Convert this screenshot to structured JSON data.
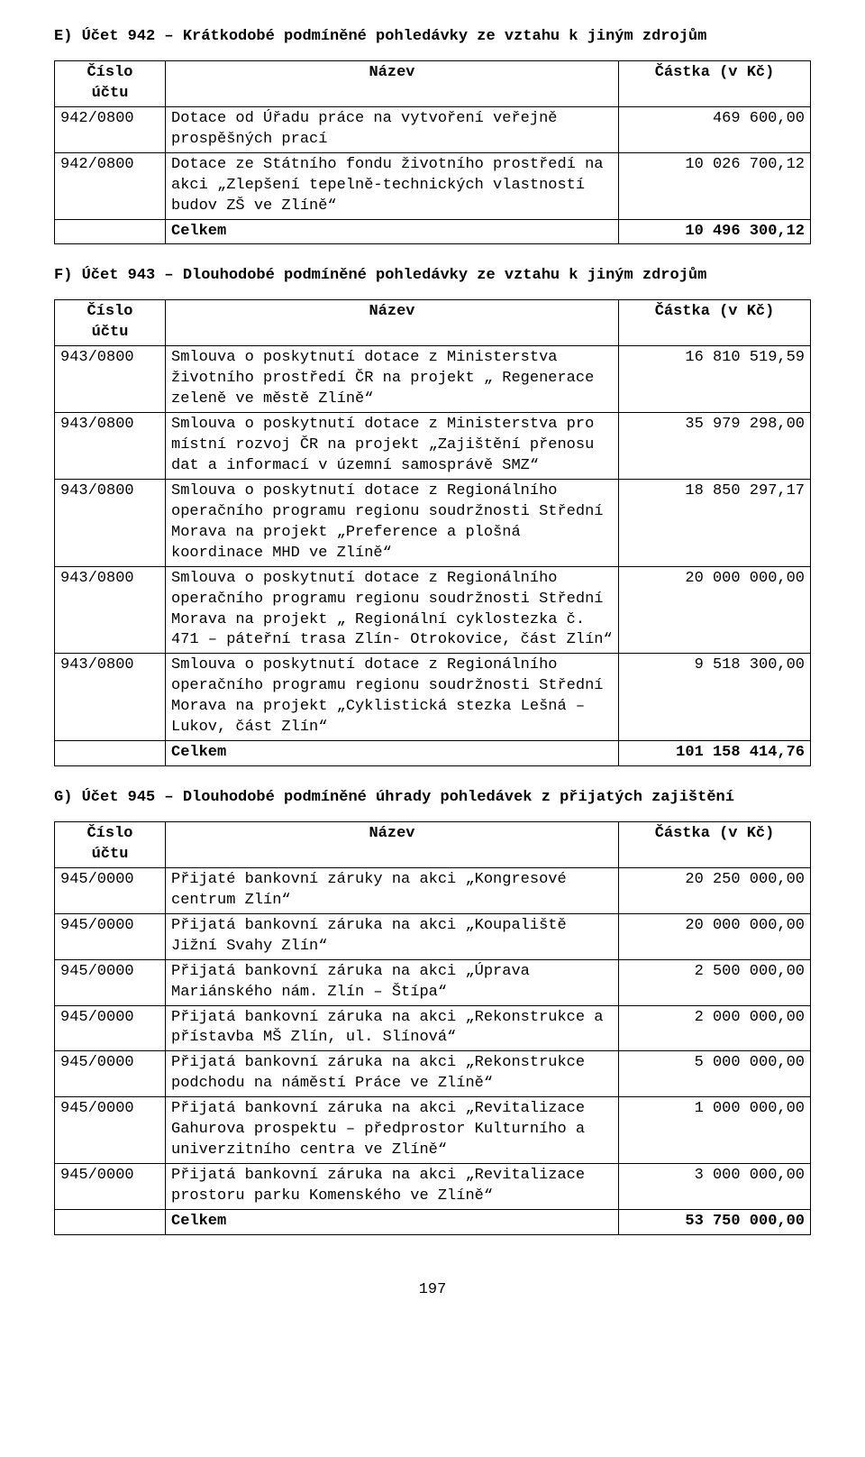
{
  "columns": {
    "acct": "Číslo\núčtu",
    "name": "Název",
    "amt": "Částka (v Kč)"
  },
  "sumLabel": "Celkem",
  "sections": [
    {
      "heading": "E) Účet 942 – Krátkodobé podmíněné pohledávky ze vztahu k jiným zdrojům",
      "rows": [
        {
          "acct": "942/0800",
          "name": "Dotace od Úřadu práce na vytvoření veřejně prospěšných prací",
          "amt": "469 600,00"
        },
        {
          "acct": "942/0800",
          "name": "Dotace ze Státního fondu životního prostředí na akci „Zlepšení tepelně-technických vlastností budov ZŠ ve Zlíně“",
          "amt": "10 026 700,12"
        }
      ],
      "sum": "10 496 300,12"
    },
    {
      "heading": "F) Účet 943 – Dlouhodobé podmíněné pohledávky ze vztahu k jiným zdrojům",
      "rows": [
        {
          "acct": "943/0800",
          "name": "Smlouva o poskytnutí dotace z Ministerstva životního prostředí ČR na projekt „ Regenerace zeleně ve městě Zlíně“",
          "amt": "16 810 519,59"
        },
        {
          "acct": "943/0800",
          "name": "Smlouva o poskytnutí dotace z Ministerstva pro místní rozvoj ČR na projekt „Zajištění přenosu dat a informací v územní samosprávě SMZ“",
          "amt": "35 979 298,00"
        },
        {
          "acct": "943/0800",
          "name": "Smlouva o poskytnutí dotace z Regionálního operačního programu regionu soudržnosti Střední Morava na projekt „Preference a plošná koordinace MHD ve Zlíně“",
          "amt": "18 850 297,17"
        },
        {
          "acct": "943/0800",
          "name": "Smlouva o poskytnutí dotace z Regionálního operačního programu regionu soudržnosti Střední Morava na projekt „ Regionální cyklostezka č. 471 – páteřní trasa Zlín- Otrokovice, část Zlín“",
          "amt": "20 000 000,00"
        },
        {
          "acct": "943/0800",
          "name": "Smlouva o poskytnutí dotace z Regionálního operačního programu regionu soudržnosti Střední Morava na projekt „Cyklistická stezka Lešná – Lukov, část Zlín“",
          "amt": "9 518 300,00"
        }
      ],
      "sum": "101 158 414,76"
    },
    {
      "heading": "G) Účet 945 – Dlouhodobé podmíněné úhrady pohledávek z přijatých zajištění",
      "rows": [
        {
          "acct": "945/0000",
          "name": "Přijaté bankovní záruky na akci „Kongresové centrum Zlín“",
          "amt": "20 250 000,00"
        },
        {
          "acct": "945/0000",
          "name": "Přijatá bankovní záruka na akci „Koupaliště Jižní Svahy Zlín“",
          "amt": "20 000 000,00"
        },
        {
          "acct": "945/0000",
          "name": "Přijatá bankovní záruka na akci „Úprava Mariánského nám. Zlín – Štípa“",
          "amt": "2 500 000,00"
        },
        {
          "acct": "945/0000",
          "name": "Přijatá bankovní záruka na akci „Rekonstrukce a přístavba MŠ Zlín, ul. Slínová“",
          "amt": "2 000 000,00"
        },
        {
          "acct": "945/0000",
          "name": "Přijatá bankovní záruka na akci „Rekonstrukce podchodu na náměstí Práce ve Zlíně“",
          "amt": "5 000 000,00"
        },
        {
          "acct": "945/0000",
          "name": "Přijatá bankovní záruka na akci „Revitalizace Gahurova prospektu – předprostor Kulturního a univerzitního centra ve Zlíně“",
          "amt": "1 000 000,00"
        },
        {
          "acct": "945/0000",
          "name": "Přijatá bankovní záruka na akci „Revitalizace prostoru parku Komenského ve Zlíně“",
          "amt": "3 000 000,00"
        }
      ],
      "sum": "53 750 000,00"
    }
  ],
  "pageNumber": "197"
}
